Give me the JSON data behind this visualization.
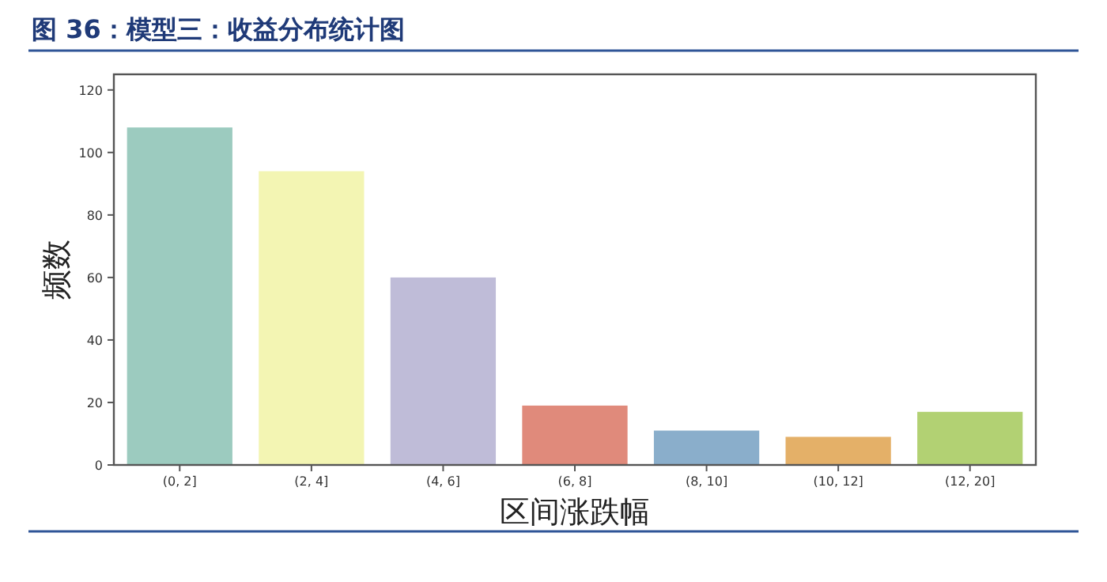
{
  "chart_data": {
    "type": "bar",
    "title": "图 36：模型三：收益分布统计图",
    "xlabel": "区间涨跌幅",
    "ylabel": "频数",
    "categories": [
      "(0, 2]",
      "(2, 4]",
      "(4, 6]",
      "(6, 8]",
      "(8, 10]",
      "(10, 12]",
      "(12, 20]"
    ],
    "values": [
      108,
      94,
      60,
      19,
      11,
      9,
      17
    ],
    "colors": [
      "#9ccbbf",
      "#f3f5b3",
      "#bfbcd8",
      "#e08a7b",
      "#8aaecb",
      "#e4b068",
      "#b2d173"
    ],
    "ylim": [
      0,
      125
    ],
    "yticks": [
      0,
      20,
      40,
      60,
      80,
      100,
      120
    ],
    "grid": false
  }
}
